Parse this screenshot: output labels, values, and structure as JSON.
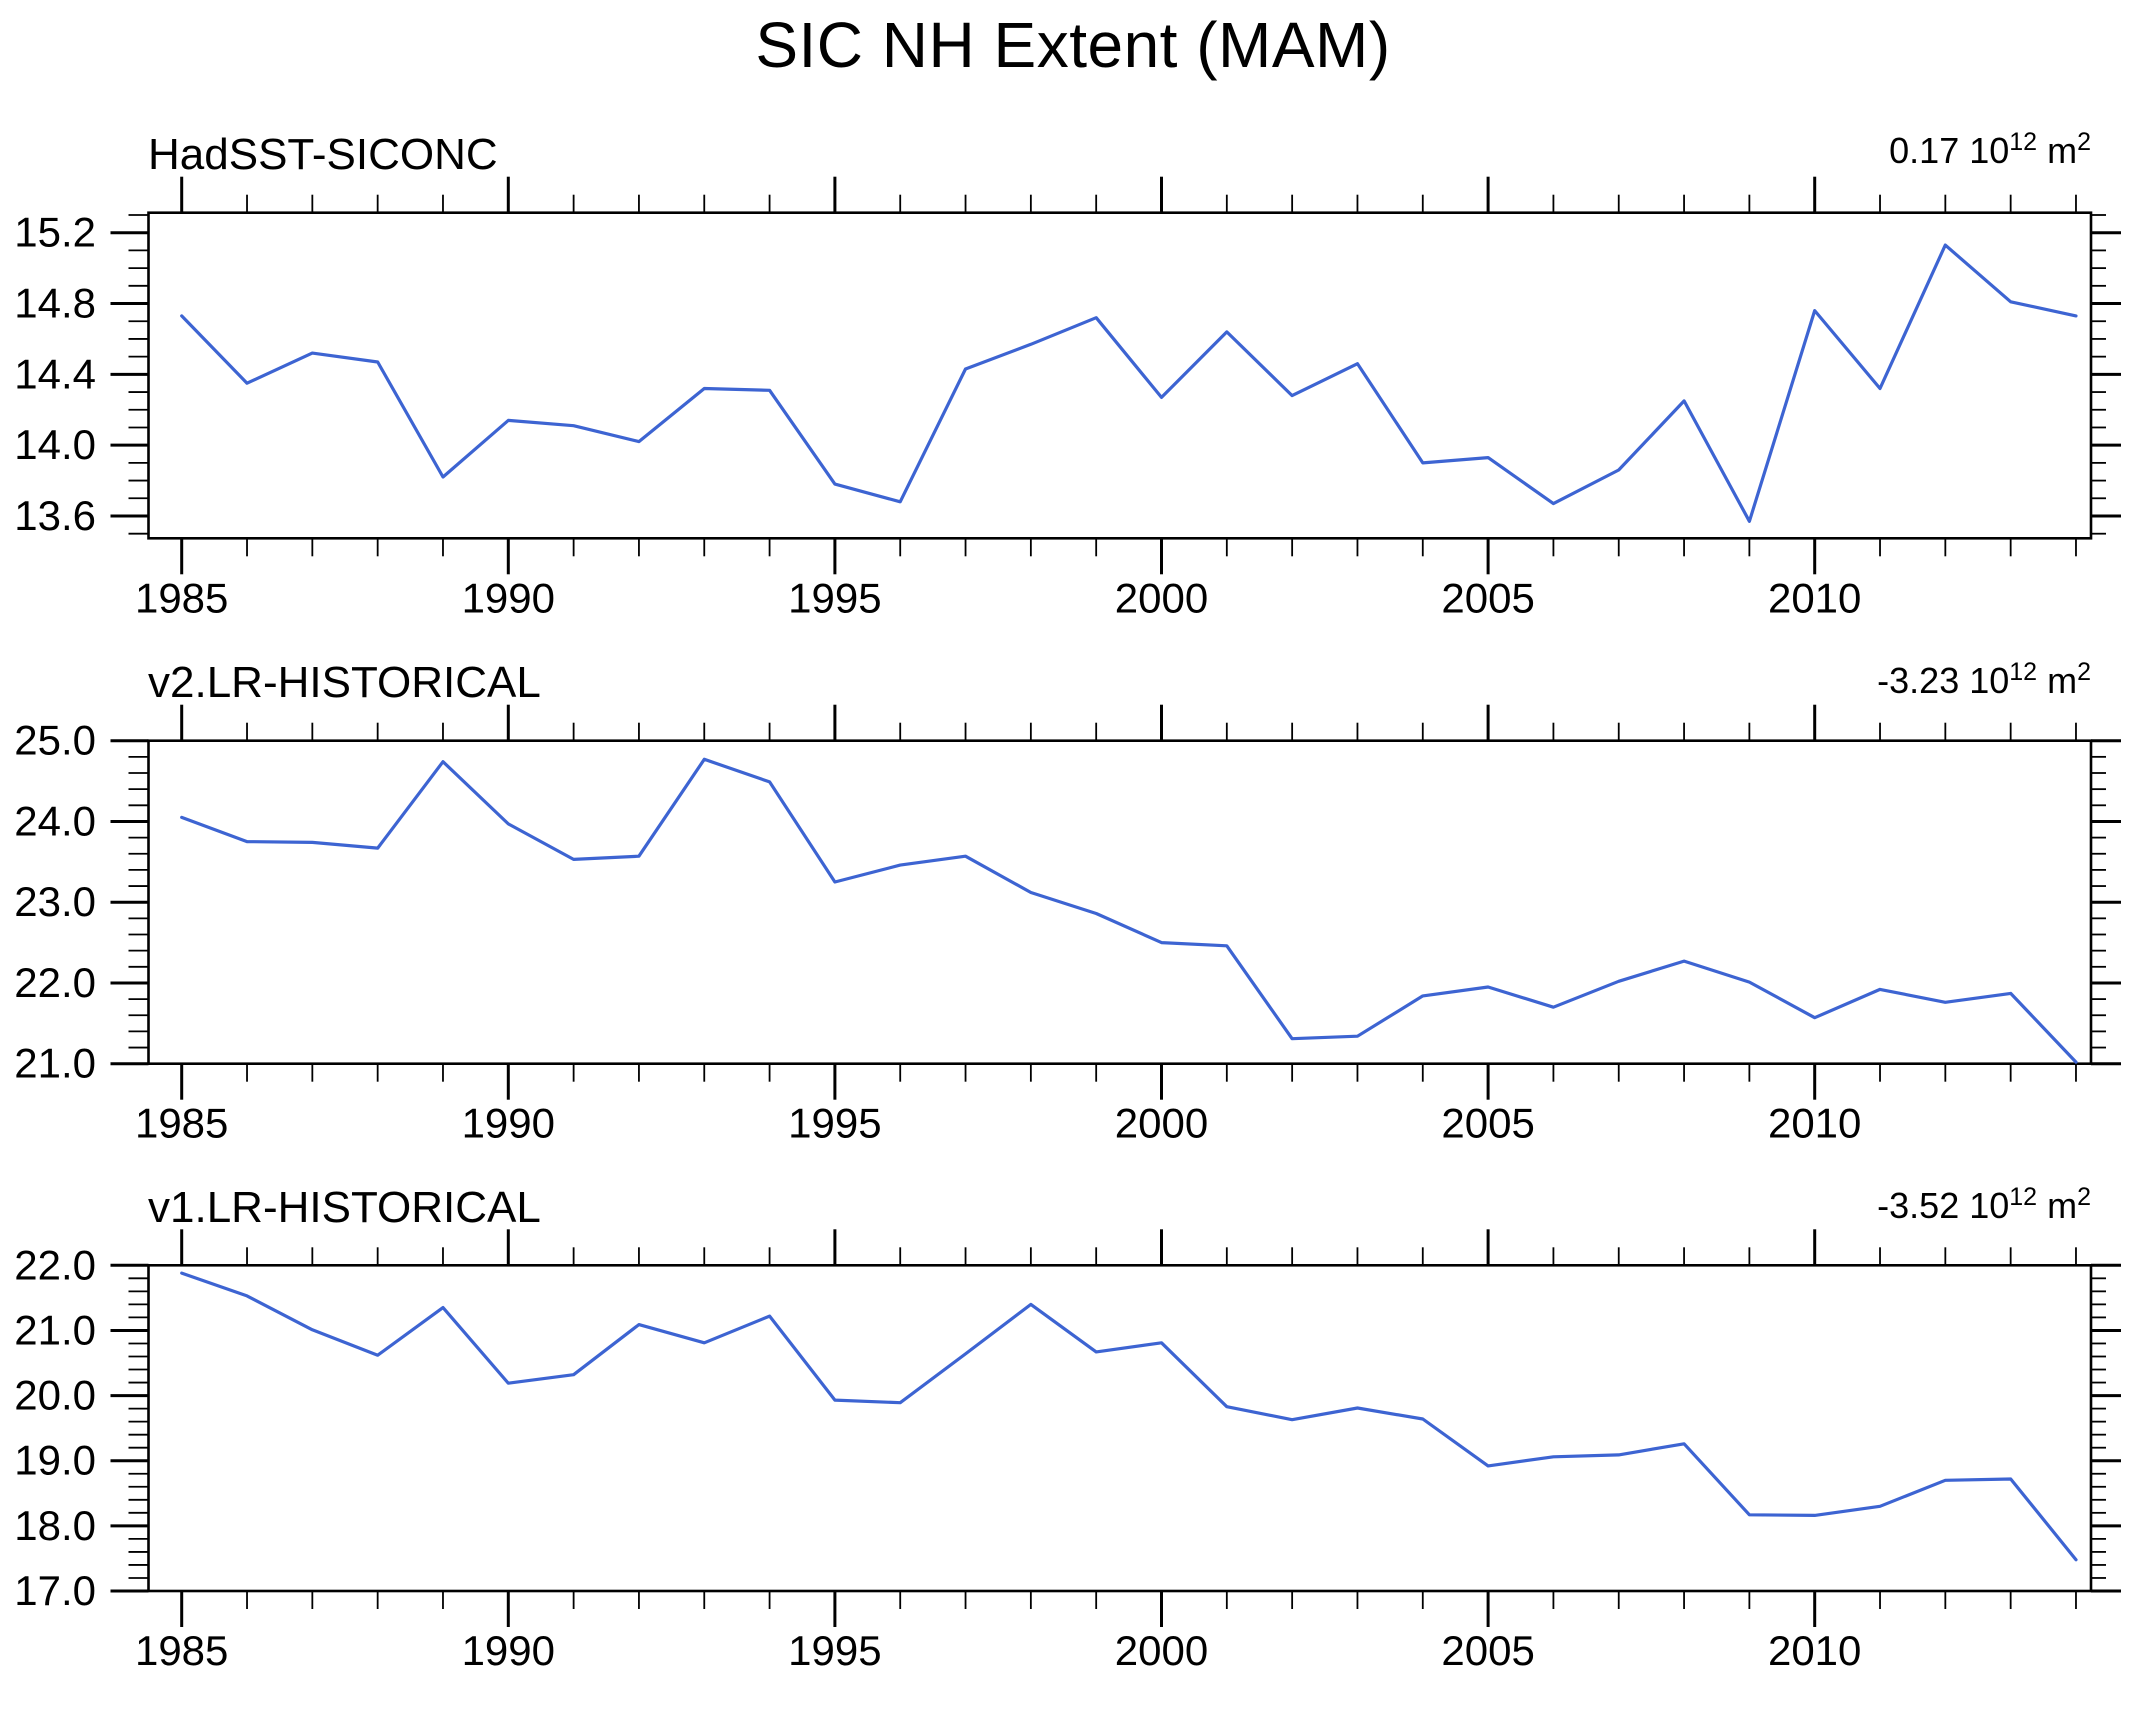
{
  "title": "SIC NH Extent (MAM)",
  "line_color": "#3d64d2",
  "axis_color": "#000000",
  "chart_data": [
    {
      "type": "line",
      "title": "HadSST-SICONC",
      "trend_label": "0.17 10^12 m^2",
      "annotation": {
        "base": "0.17 10",
        "exp": "12",
        "unit": " m",
        "unit_exp": "2"
      },
      "x": [
        1985,
        1986,
        1987,
        1988,
        1989,
        1990,
        1991,
        1992,
        1993,
        1994,
        1995,
        1996,
        1997,
        1998,
        1999,
        2000,
        2001,
        2002,
        2003,
        2004,
        2005,
        2006,
        2007,
        2008,
        2009,
        2010,
        2011,
        2012,
        2013,
        2014
      ],
      "values": [
        14.73,
        14.35,
        14.52,
        14.47,
        13.82,
        14.14,
        14.11,
        14.02,
        14.32,
        14.31,
        13.78,
        13.68,
        14.43,
        14.57,
        14.72,
        14.27,
        14.64,
        14.28,
        14.46,
        13.9,
        13.93,
        13.67,
        13.86,
        14.25,
        13.57,
        14.76,
        14.32,
        15.13,
        14.81,
        14.73
      ],
      "xlabel": "",
      "ylabel": "",
      "ylim": [
        13.474,
        15.313
      ],
      "ytick_labels": [
        15.2,
        14.8,
        14.4,
        14.0,
        13.6
      ],
      "ytick_minor_step": 0.1,
      "xtick_labels": [
        1985,
        1990,
        1995,
        2000,
        2005,
        2010
      ],
      "xtick_minor_step_years": 1,
      "grid": false,
      "legend": "none"
    },
    {
      "type": "line",
      "title": "v2.LR-HISTORICAL",
      "trend_label": "-3.23 10^12 m^2",
      "annotation": {
        "base": "-3.23 10",
        "exp": "12",
        "unit": " m",
        "unit_exp": "2"
      },
      "x": [
        1985,
        1986,
        1987,
        1988,
        1989,
        1990,
        1991,
        1992,
        1993,
        1994,
        1995,
        1996,
        1997,
        1998,
        1999,
        2000,
        2001,
        2002,
        2003,
        2004,
        2005,
        2006,
        2007,
        2008,
        2009,
        2010,
        2011,
        2012,
        2013,
        2014
      ],
      "values": [
        24.05,
        23.75,
        23.74,
        23.67,
        24.74,
        23.97,
        23.53,
        23.57,
        24.77,
        24.49,
        23.25,
        23.46,
        23.57,
        23.12,
        22.86,
        22.5,
        22.46,
        21.31,
        21.34,
        21.84,
        21.95,
        21.7,
        22.02,
        22.27,
        22.01,
        21.57,
        21.92,
        21.76,
        21.87,
        21.02
      ],
      "xlabel": "",
      "ylabel": "",
      "ylim": [
        21.0,
        25.0
      ],
      "ytick_labels": [
        25.0,
        24.0,
        23.0,
        22.0,
        21.0
      ],
      "ytick_minor_step": 0.2,
      "xtick_labels": [
        1985,
        1990,
        1995,
        2000,
        2005,
        2010
      ],
      "xtick_minor_step_years": 1,
      "grid": false,
      "legend": "none"
    },
    {
      "type": "line",
      "title": "v1.LR-HISTORICAL",
      "trend_label": "-3.52 10^12 m^2",
      "annotation": {
        "base": "-3.52 10",
        "exp": "12",
        "unit": " m",
        "unit_exp": "2"
      },
      "x": [
        1985,
        1986,
        1987,
        1988,
        1989,
        1990,
        1991,
        1992,
        1993,
        1994,
        1995,
        1996,
        1997,
        1998,
        1999,
        2000,
        2001,
        2002,
        2003,
        2004,
        2005,
        2006,
        2007,
        2008,
        2009,
        2010,
        2011,
        2012,
        2013,
        2014
      ],
      "values": [
        21.88,
        21.53,
        21.01,
        20.62,
        21.35,
        20.19,
        20.32,
        21.09,
        20.81,
        21.22,
        19.93,
        19.89,
        20.64,
        21.4,
        20.67,
        20.81,
        19.83,
        19.63,
        19.81,
        19.64,
        18.92,
        19.06,
        19.09,
        19.26,
        18.17,
        18.16,
        18.3,
        18.7,
        18.72,
        17.48
      ],
      "xlabel": "",
      "ylabel": "",
      "ylim": [
        17.0,
        22.0
      ],
      "ytick_labels": [
        22.0,
        21.0,
        20.0,
        19.0,
        18.0,
        17.0
      ],
      "ytick_minor_step": 0.2,
      "xtick_labels": [
        1985,
        1990,
        1995,
        2000,
        2005,
        2010
      ],
      "xtick_minor_step_years": 1,
      "grid": false,
      "legend": "none"
    }
  ]
}
